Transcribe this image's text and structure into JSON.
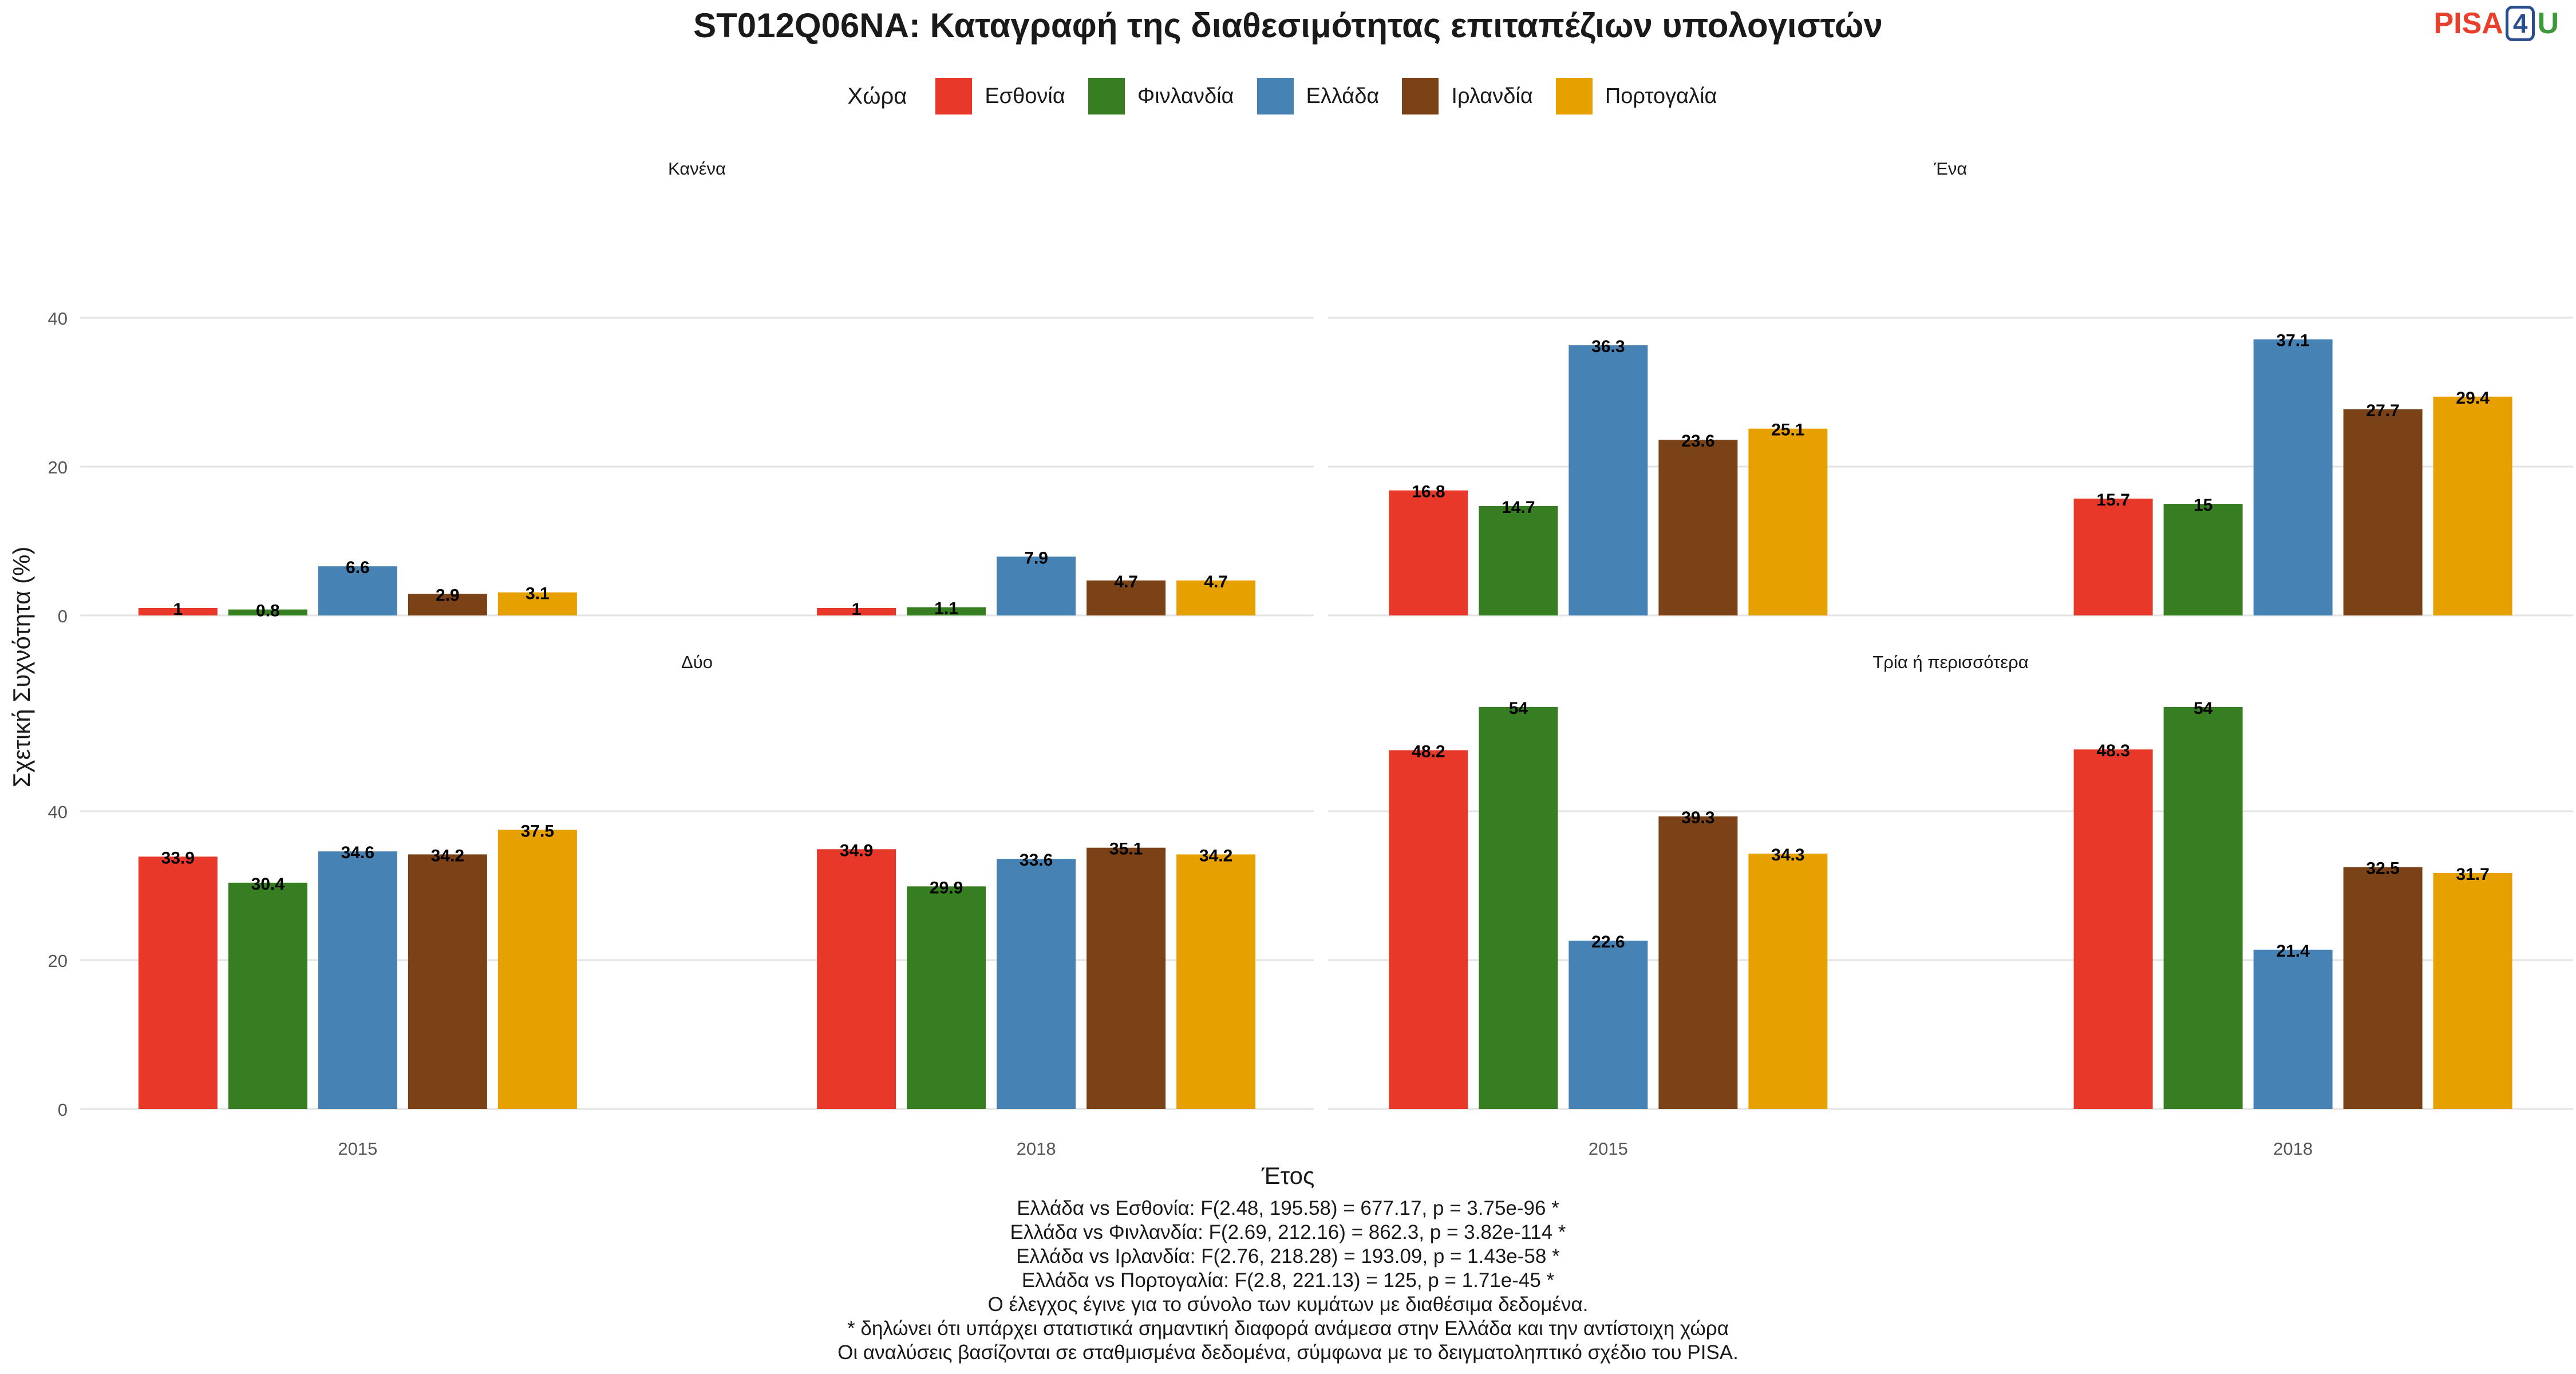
{
  "title": "ST012Q06NA: Καταγραφή της διαθεσιμότητας επιταπέζιων υπολογιστών",
  "logo": {
    "pisa": "PISA",
    "four": "4",
    "u": "U"
  },
  "legend": {
    "title": "Χώρα",
    "items": [
      {
        "label": "Εσθονία",
        "color": "#E8382A"
      },
      {
        "label": "Φινλανδία",
        "color": "#377E22"
      },
      {
        "label": "Ελλάδα",
        "color": "#4682B4"
      },
      {
        "label": "Ιρλανδία",
        "color": "#7A4216"
      },
      {
        "label": "Πορτογαλία",
        "color": "#E6A000"
      }
    ]
  },
  "chart_data": {
    "type": "bar",
    "xlabel": "Έτος",
    "ylabel": "Σχετική Συχνότητα (%)",
    "ylim": [
      0,
      50
    ],
    "yticks": [
      "0",
      "20",
      "40"
    ],
    "categories": [
      "2015",
      "2018"
    ],
    "series_names": [
      "Εσθονία",
      "Φινλανδία",
      "Ελλάδα",
      "Ιρλανδία",
      "Πορτογαλία"
    ],
    "panels": [
      {
        "title": "Κανένα",
        "values": [
          [
            1,
            0.8,
            6.6,
            2.9,
            3.1
          ],
          [
            1,
            1.1,
            7.9,
            4.7,
            4.7
          ]
        ],
        "labels": [
          [
            "1",
            "0.8",
            "6.6",
            "2.9",
            "3.1"
          ],
          [
            "1",
            "1.1",
            "7.9",
            "4.7",
            "4.7"
          ]
        ]
      },
      {
        "title": "Ένα",
        "values": [
          [
            16.8,
            14.7,
            36.3,
            23.6,
            25.1
          ],
          [
            15.7,
            15,
            37.1,
            27.7,
            29.4
          ]
        ],
        "labels": [
          [
            "16.8",
            "14.7",
            "36.3",
            "23.6",
            "25.1"
          ],
          [
            "15.7",
            "15",
            "37.1",
            "27.7",
            "29.4"
          ]
        ]
      },
      {
        "title": "Δύο",
        "values": [
          [
            33.9,
            30.4,
            34.6,
            34.2,
            37.5
          ],
          [
            34.9,
            29.9,
            33.6,
            35.1,
            34.2
          ]
        ],
        "labels": [
          [
            "33.9",
            "30.4",
            "34.6",
            "34.2",
            "37.5"
          ],
          [
            "34.9",
            "29.9",
            "33.6",
            "35.1",
            "34.2"
          ]
        ]
      },
      {
        "title": "Τρία ή περισσότερα",
        "values": [
          [
            48.2,
            54,
            22.6,
            39.3,
            34.3
          ],
          [
            48.3,
            54,
            21.4,
            32.5,
            31.7
          ]
        ],
        "labels": [
          [
            "48.2",
            "54",
            "22.6",
            "39.3",
            "34.3"
          ],
          [
            "48.3",
            "54",
            "21.4",
            "32.5",
            "31.7"
          ]
        ]
      }
    ]
  },
  "notes": [
    "Ελλάδα vs Εσθονία: F(2.48, 195.58) = 677.17, p = 3.75e-96 *",
    "Ελλάδα vs Φινλανδία: F(2.69, 212.16) = 862.3, p = 3.82e-114 *",
    "Ελλάδα vs Ιρλανδία: F(2.76, 218.28) = 193.09, p = 1.43e-58 *",
    "Ελλάδα vs Πορτογαλία: F(2.8, 221.13) = 125, p = 1.71e-45 *",
    "Ο έλεγχος έγινε για το σύνολο των κυμάτων με διαθέσιμα δεδομένα.",
    "* δηλώνει ότι υπάρχει στατιστικά σημαντική διαφορά ανάμεσα στην Ελλάδα και την αντίστοιχη χώρα",
    "Οι αναλύσεις βασίζονται σε σταθμισμένα δεδομένα, σύμφωνα με το δειγματοληπτικό σχέδιο του PISA."
  ]
}
